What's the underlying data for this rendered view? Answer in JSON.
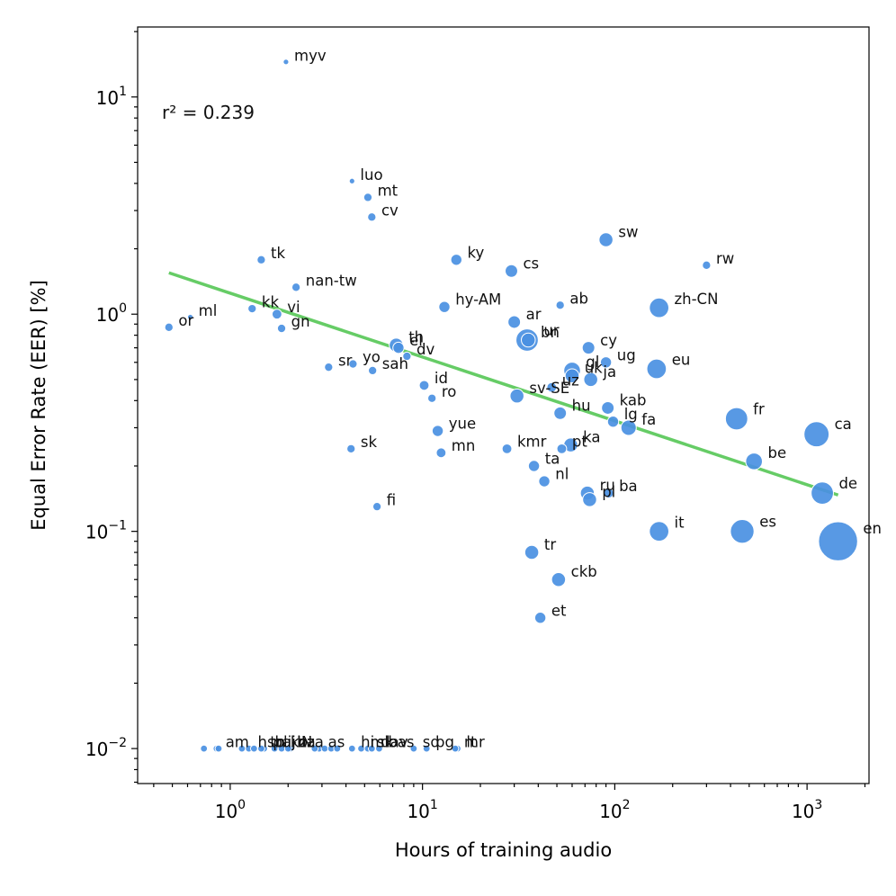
{
  "chart_data": {
    "type": "scatter",
    "xlabel": "Hours of training audio",
    "ylabel": "Equal Error Rate (EER) [%]",
    "x_scale": "log",
    "y_scale": "log",
    "xlim": [
      0.33,
      2100
    ],
    "ylim": [
      0.0069,
      21
    ],
    "x_ticks": [
      {
        "value": 1,
        "base": "10",
        "exp": "0"
      },
      {
        "value": 10,
        "base": "10",
        "exp": "1"
      },
      {
        "value": 100,
        "base": "10",
        "exp": "2"
      },
      {
        "value": 1000,
        "base": "10",
        "exp": "3"
      }
    ],
    "y_ticks": [
      {
        "value": 0.01,
        "base": "10",
        "exp": "−2"
      },
      {
        "value": 0.1,
        "base": "10",
        "exp": "−1"
      },
      {
        "value": 1,
        "base": "10",
        "exp": "0"
      },
      {
        "value": 10,
        "base": "10",
        "exp": "1"
      }
    ],
    "annotation": "r² = 0.239",
    "fit_line": {
      "x": [
        0.48,
        1450
      ],
      "y": [
        1.55,
        0.147
      ],
      "color": "#66cc66"
    },
    "point_color": "#4a90e2",
    "points": [
      {
        "label": "myv",
        "x": 1.95,
        "y": 14.5,
        "size": 2
      },
      {
        "label": "luo",
        "x": 4.3,
        "y": 4.1,
        "size": 2
      },
      {
        "label": "mt",
        "x": 5.2,
        "y": 3.45,
        "size": 3
      },
      {
        "label": "cv",
        "x": 5.45,
        "y": 2.8,
        "size": 3
      },
      {
        "label": "sw",
        "x": 90,
        "y": 2.2,
        "size": 5
      },
      {
        "label": "tk",
        "x": 1.45,
        "y": 1.78,
        "size": 3
      },
      {
        "label": "ky",
        "x": 15,
        "y": 1.78,
        "size": 4
      },
      {
        "label": "rw",
        "x": 300,
        "y": 1.68,
        "size": 3
      },
      {
        "label": "cs",
        "x": 29,
        "y": 1.58,
        "size": 4.5
      },
      {
        "label": "nan-tw",
        "x": 2.2,
        "y": 1.33,
        "size": 3
      },
      {
        "label": "ab",
        "x": 52,
        "y": 1.1,
        "size": 3
      },
      {
        "label": "hy-AM",
        "x": 13,
        "y": 1.08,
        "size": 4
      },
      {
        "label": "zh-CN",
        "x": 170,
        "y": 1.07,
        "size": 7
      },
      {
        "label": "ml",
        "x": 0.62,
        "y": 0.97,
        "size": 2
      },
      {
        "label": "kk",
        "x": 1.3,
        "y": 1.06,
        "size": 3
      },
      {
        "label": "vi",
        "x": 1.75,
        "y": 1.0,
        "size": 3.5
      },
      {
        "label": "gn",
        "x": 1.85,
        "y": 0.86,
        "size": 3
      },
      {
        "label": "or",
        "x": 0.48,
        "y": 0.87,
        "size": 3
      },
      {
        "label": "ar",
        "x": 30,
        "y": 0.92,
        "size": 4.5
      },
      {
        "label": "ur",
        "x": 35,
        "y": 0.76,
        "size": 8
      },
      {
        "label": "bn",
        "x": 35.5,
        "y": 0.76,
        "size": 5
      },
      {
        "label": "cy",
        "x": 73,
        "y": 0.7,
        "size": 4.5
      },
      {
        "label": "th",
        "x": 7.3,
        "y": 0.72,
        "size": 5
      },
      {
        "label": "el",
        "x": 7.5,
        "y": 0.7,
        "size": 4
      },
      {
        "label": "dv",
        "x": 8.3,
        "y": 0.64,
        "size": 3
      },
      {
        "label": "ug",
        "x": 90,
        "y": 0.6,
        "size": 4
      },
      {
        "label": "eu",
        "x": 165,
        "y": 0.56,
        "size": 7
      },
      {
        "label": "sr",
        "x": 3.25,
        "y": 0.57,
        "size": 3
      },
      {
        "label": "yo",
        "x": 4.35,
        "y": 0.59,
        "size": 3
      },
      {
        "label": "sah",
        "x": 5.5,
        "y": 0.55,
        "size": 3
      },
      {
        "label": "gl",
        "x": 60,
        "y": 0.55,
        "size": 6
      },
      {
        "label": "ja",
        "x": 75,
        "y": 0.5,
        "size": 5
      },
      {
        "label": "uk",
        "x": 60,
        "y": 0.52,
        "size": 5
      },
      {
        "label": "id",
        "x": 10.2,
        "y": 0.47,
        "size": 3.5
      },
      {
        "label": "uz",
        "x": 47,
        "y": 0.46,
        "size": 3.5
      },
      {
        "label": "ro",
        "x": 11.2,
        "y": 0.41,
        "size": 3
      },
      {
        "label": "sv-SE",
        "x": 31,
        "y": 0.42,
        "size": 5
      },
      {
        "label": "kab",
        "x": 92,
        "y": 0.37,
        "size": 4.5
      },
      {
        "label": "hu",
        "x": 52,
        "y": 0.35,
        "size": 4.5
      },
      {
        "label": "lg",
        "x": 98,
        "y": 0.32,
        "size": 4
      },
      {
        "label": "fa",
        "x": 118,
        "y": 0.3,
        "size": 5.5
      },
      {
        "label": "fr",
        "x": 430,
        "y": 0.33,
        "size": 8
      },
      {
        "label": "ca",
        "x": 1120,
        "y": 0.28,
        "size": 9
      },
      {
        "label": "yue",
        "x": 12,
        "y": 0.29,
        "size": 4
      },
      {
        "label": "sk",
        "x": 4.25,
        "y": 0.24,
        "size": 3
      },
      {
        "label": "kmr",
        "x": 27.5,
        "y": 0.24,
        "size": 3.5
      },
      {
        "label": "pt",
        "x": 53,
        "y": 0.24,
        "size": 3.5
      },
      {
        "label": "ka",
        "x": 59,
        "y": 0.25,
        "size": 5
      },
      {
        "label": "mn",
        "x": 12.5,
        "y": 0.23,
        "size": 3.5
      },
      {
        "label": "be",
        "x": 530,
        "y": 0.21,
        "size": 6
      },
      {
        "label": "ta",
        "x": 38,
        "y": 0.2,
        "size": 4
      },
      {
        "label": "nl",
        "x": 43,
        "y": 0.17,
        "size": 4
      },
      {
        "label": "ru",
        "x": 72,
        "y": 0.15,
        "size": 5
      },
      {
        "label": "pl",
        "x": 74,
        "y": 0.14,
        "size": 5
      },
      {
        "label": "ba",
        "x": 93,
        "y": 0.15,
        "size": 3.5
      },
      {
        "label": "de",
        "x": 1200,
        "y": 0.15,
        "size": 8
      },
      {
        "label": "fi",
        "x": 5.8,
        "y": 0.13,
        "size": 3
      },
      {
        "label": "it",
        "x": 170,
        "y": 0.1,
        "size": 7
      },
      {
        "label": "es",
        "x": 460,
        "y": 0.1,
        "size": 8.5
      },
      {
        "label": "en",
        "x": 1450,
        "y": 0.09,
        "size": 14
      },
      {
        "label": "tr",
        "x": 37,
        "y": 0.08,
        "size": 5
      },
      {
        "label": "ckb",
        "x": 51,
        "y": 0.06,
        "size": 5
      },
      {
        "label": "et",
        "x": 41,
        "y": 0.04,
        "size": 4
      },
      {
        "label": "lij",
        "x": 1.7,
        "y": 0.01,
        "size": 2.5
      },
      {
        "label": "pa-IN",
        "x": 1.5,
        "y": 0.01,
        "size": 2.5
      },
      {
        "label": "ko",
        "x": 1.85,
        "y": 0.01,
        "size": 2.5
      },
      {
        "label": "zza",
        "x": 2.05,
        "y": 0.01,
        "size": 2.5
      },
      {
        "label": "am",
        "x": 0.85,
        "y": 0.01,
        "size": 2.5
      },
      {
        "label": "hsb",
        "x": 1.25,
        "y": 0.01,
        "size": 2.5
      },
      {
        "label": "ha",
        "x": 2.0,
        "y": 0.01,
        "size": 2.5
      },
      {
        "label": "tn",
        "x": 1.45,
        "y": 0.01,
        "size": 2.5
      },
      {
        "label": "as",
        "x": 2.9,
        "y": 0.01,
        "size": 2.5
      },
      {
        "label": "mk",
        "x": 4.8,
        "y": 0.01,
        "size": 2.5
      },
      {
        "label": "sl",
        "x": 5.2,
        "y": 0.01,
        "size": 2.5
      },
      {
        "label": "dav",
        "x": 5.45,
        "y": 0.01,
        "size": 2.5
      },
      {
        "label": "hi",
        "x": 4.3,
        "y": 0.01,
        "size": 2.5
      },
      {
        "label": "bas",
        "x": 5.95,
        "y": 0.01,
        "size": 2.5
      },
      {
        "label": "bg",
        "x": 10.5,
        "y": 0.01,
        "size": 2.5
      },
      {
        "label": "sq",
        "x": 9.0,
        "y": 0.01,
        "size": 2.5
      },
      {
        "label": "lt",
        "x": 15.2,
        "y": 0.01,
        "size": 2.5
      },
      {
        "label": "mr",
        "x": 14.8,
        "y": 0.01,
        "size": 2.5
      },
      {
        "label": "",
        "x": 0.73,
        "y": 0.01,
        "size": 2.5
      },
      {
        "label": "",
        "x": 0.87,
        "y": 0.01,
        "size": 2.5
      },
      {
        "label": "",
        "x": 1.15,
        "y": 0.01,
        "size": 2.5
      },
      {
        "label": "",
        "x": 1.33,
        "y": 0.01,
        "size": 2.5
      },
      {
        "label": "",
        "x": 2.75,
        "y": 0.01,
        "size": 2.5
      },
      {
        "label": "",
        "x": 3.1,
        "y": 0.01,
        "size": 2.5
      },
      {
        "label": "",
        "x": 3.35,
        "y": 0.01,
        "size": 2.5
      },
      {
        "label": "",
        "x": 3.6,
        "y": 0.01,
        "size": 2.5
      }
    ]
  }
}
